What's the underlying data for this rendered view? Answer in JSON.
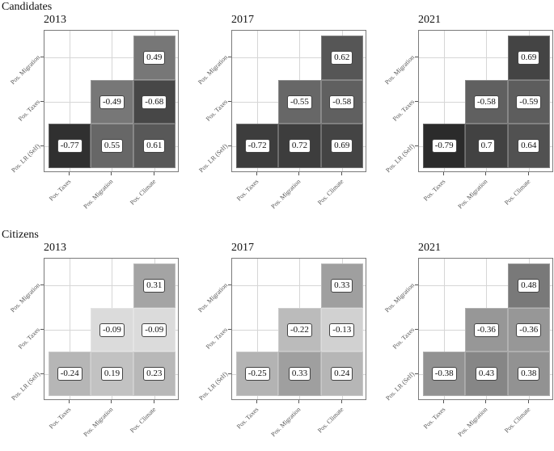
{
  "chart_data": [
    {
      "type": "heatmap",
      "group": "Candidates",
      "title": "2013",
      "x_labels": [
        "Pos. Taxes",
        "Pos. Migration",
        "Pos. Climate"
      ],
      "y_labels": [
        "Pos. LR (Self)",
        "Pos. Taxes",
        "Pos. Migration"
      ],
      "cells": [
        {
          "x": "Pos. Taxes",
          "y": "Pos. LR (Self)",
          "value": -0.77
        },
        {
          "x": "Pos. Migration",
          "y": "Pos. LR (Self)",
          "value": 0.55
        },
        {
          "x": "Pos. Climate",
          "y": "Pos. LR (Self)",
          "value": 0.61
        },
        {
          "x": "Pos. Migration",
          "y": "Pos. Taxes",
          "value": -0.49
        },
        {
          "x": "Pos. Climate",
          "y": "Pos. Taxes",
          "value": -0.68
        },
        {
          "x": "Pos. Climate",
          "y": "Pos. Migration",
          "value": 0.49
        }
      ]
    },
    {
      "type": "heatmap",
      "group": "Candidates",
      "title": "2017",
      "x_labels": [
        "Pos. Taxes",
        "Pos. Migration",
        "Pos. Climate"
      ],
      "y_labels": [
        "Pos. LR (Self)",
        "Pos. Taxes",
        "Pos. Migration"
      ],
      "cells": [
        {
          "x": "Pos. Taxes",
          "y": "Pos. LR (Self)",
          "value": -0.72
        },
        {
          "x": "Pos. Migration",
          "y": "Pos. LR (Self)",
          "value": 0.72
        },
        {
          "x": "Pos. Climate",
          "y": "Pos. LR (Self)",
          "value": 0.69
        },
        {
          "x": "Pos. Migration",
          "y": "Pos. Taxes",
          "value": -0.55
        },
        {
          "x": "Pos. Climate",
          "y": "Pos. Taxes",
          "value": -0.58
        },
        {
          "x": "Pos. Climate",
          "y": "Pos. Migration",
          "value": 0.62
        }
      ]
    },
    {
      "type": "heatmap",
      "group": "Candidates",
      "title": "2021",
      "x_labels": [
        "Pos. Taxes",
        "Pos. Migration",
        "Pos. Climate"
      ],
      "y_labels": [
        "Pos. LR (Self)",
        "Pos. Taxes",
        "Pos. Migration"
      ],
      "cells": [
        {
          "x": "Pos. Taxes",
          "y": "Pos. LR (Self)",
          "value": -0.79
        },
        {
          "x": "Pos. Migration",
          "y": "Pos. LR (Self)",
          "value": 0.7
        },
        {
          "x": "Pos. Climate",
          "y": "Pos. LR (Self)",
          "value": 0.64
        },
        {
          "x": "Pos. Migration",
          "y": "Pos. Taxes",
          "value": -0.58
        },
        {
          "x": "Pos. Climate",
          "y": "Pos. Taxes",
          "value": -0.59
        },
        {
          "x": "Pos. Climate",
          "y": "Pos. Migration",
          "value": 0.69
        }
      ]
    },
    {
      "type": "heatmap",
      "group": "Citizens",
      "title": "2013",
      "x_labels": [
        "Pos. Taxes",
        "Pos. Migration",
        "Pos. Climate"
      ],
      "y_labels": [
        "Pos. LR (Self)",
        "Pos. Taxes",
        "Pos. Migration"
      ],
      "cells": [
        {
          "x": "Pos. Taxes",
          "y": "Pos. LR (Self)",
          "value": -0.24
        },
        {
          "x": "Pos. Migration",
          "y": "Pos. LR (Self)",
          "value": 0.19
        },
        {
          "x": "Pos. Climate",
          "y": "Pos. LR (Self)",
          "value": 0.23
        },
        {
          "x": "Pos. Migration",
          "y": "Pos. Taxes",
          "value": -0.09
        },
        {
          "x": "Pos. Climate",
          "y": "Pos. Taxes",
          "value": -0.09
        },
        {
          "x": "Pos. Climate",
          "y": "Pos. Migration",
          "value": 0.31
        }
      ]
    },
    {
      "type": "heatmap",
      "group": "Citizens",
      "title": "2017",
      "x_labels": [
        "Pos. Taxes",
        "Pos. Migration",
        "Pos. Climate"
      ],
      "y_labels": [
        "Pos. LR (Self)",
        "Pos. Taxes",
        "Pos. Migration"
      ],
      "cells": [
        {
          "x": "Pos. Taxes",
          "y": "Pos. LR (Self)",
          "value": -0.25
        },
        {
          "x": "Pos. Migration",
          "y": "Pos. LR (Self)",
          "value": 0.33
        },
        {
          "x": "Pos. Climate",
          "y": "Pos. LR (Self)",
          "value": 0.24
        },
        {
          "x": "Pos. Migration",
          "y": "Pos. Taxes",
          "value": -0.22
        },
        {
          "x": "Pos. Climate",
          "y": "Pos. Taxes",
          "value": -0.13
        },
        {
          "x": "Pos. Climate",
          "y": "Pos. Migration",
          "value": 0.33
        }
      ]
    },
    {
      "type": "heatmap",
      "group": "Citizens",
      "title": "2021",
      "x_labels": [
        "Pos. Taxes",
        "Pos. Migration",
        "Pos. Climate"
      ],
      "y_labels": [
        "Pos. LR (Self)",
        "Pos. Taxes",
        "Pos. Migration"
      ],
      "cells": [
        {
          "x": "Pos. Taxes",
          "y": "Pos. LR (Self)",
          "value": -0.38
        },
        {
          "x": "Pos. Migration",
          "y": "Pos. LR (Self)",
          "value": 0.43
        },
        {
          "x": "Pos. Climate",
          "y": "Pos. LR (Self)",
          "value": 0.38
        },
        {
          "x": "Pos. Migration",
          "y": "Pos. Taxes",
          "value": -0.36
        },
        {
          "x": "Pos. Climate",
          "y": "Pos. Taxes",
          "value": -0.36
        },
        {
          "x": "Pos. Climate",
          "y": "Pos. Migration",
          "value": 0.48
        }
      ]
    }
  ],
  "groups": {
    "candidates": {
      "title": "Candidates"
    },
    "citizens": {
      "title": "Citizens"
    }
  },
  "style": {
    "color_scale": "grayscale by absolute correlation (light = weak, dark = strong)",
    "light_color": "#f2f2f2",
    "dark_color": "#1e1e1e",
    "label_bg": "#ffffff"
  }
}
